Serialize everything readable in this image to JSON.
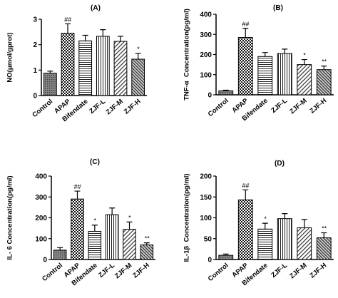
{
  "chart_data": [
    {
      "type": "bar",
      "title": "(A)",
      "xlabel": "",
      "ylabel": "NO(μmol/gprot)",
      "categories": [
        "Control",
        "APAP",
        "Bifendate",
        "ZJF-L",
        "ZJF-M",
        "ZJF-H"
      ],
      "values": [
        0.88,
        2.45,
        2.15,
        2.33,
        2.13,
        1.43
      ],
      "errors": [
        0.08,
        0.37,
        0.22,
        0.26,
        0.2,
        0.23
      ],
      "significance": [
        null,
        "##",
        null,
        null,
        null,
        "*"
      ],
      "ylim": [
        0,
        3
      ],
      "yticks": [
        0,
        1,
        2,
        3
      ]
    },
    {
      "type": "bar",
      "title": "(B)",
      "xlabel": "",
      "ylabel": "TNF-α  Concentration(pg/ml)",
      "categories": [
        "Control",
        "APAP",
        "Bifendate",
        "ZJF-L",
        "ZJF-M",
        "ZJF-H"
      ],
      "values": [
        20,
        285,
        190,
        205,
        150,
        125
      ],
      "errors": [
        3,
        45,
        20,
        22,
        25,
        18
      ],
      "significance": [
        null,
        "##",
        null,
        null,
        "*",
        "**"
      ],
      "ylim": [
        0,
        400
      ],
      "yticks": [
        0,
        100,
        200,
        300,
        400
      ]
    },
    {
      "type": "bar",
      "title": "(C)",
      "xlabel": "",
      "ylabel": "IL- 6 Concentration(pg/ml)",
      "categories": [
        "Control",
        "APAP",
        "Bifendate",
        "ZJF-L",
        "ZJF-M",
        "ZJF-H"
      ],
      "values": [
        45,
        290,
        135,
        215,
        145,
        70
      ],
      "errors": [
        12,
        38,
        30,
        32,
        35,
        10
      ],
      "significance": [
        null,
        "##",
        "*",
        null,
        "*",
        "**"
      ],
      "ylim": [
        0,
        400
      ],
      "yticks": [
        0,
        100,
        200,
        300,
        400
      ]
    },
    {
      "type": "bar",
      "title": "(D)",
      "xlabel": "",
      "ylabel": "IL-1β  Concentration(pg/ml)",
      "categories": [
        "Control",
        "APAP",
        "Bifendate",
        "ZJF-L",
        "ZJF-M",
        "ZJF-H"
      ],
      "values": [
        10,
        143,
        73,
        98,
        76,
        52
      ],
      "errors": [
        3,
        24,
        14,
        12,
        20,
        12
      ],
      "significance": [
        null,
        "##",
        "*",
        null,
        null,
        "**"
      ],
      "ylim": [
        0,
        200
      ],
      "yticks": [
        0,
        50,
        100,
        150,
        200
      ]
    }
  ]
}
